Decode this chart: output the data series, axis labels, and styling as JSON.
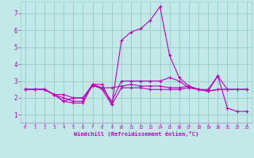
{
  "xlabel": "Windchill (Refroidissement éolien,°C)",
  "xlim": [
    -0.5,
    23.5
  ],
  "ylim": [
    0.5,
    7.7
  ],
  "yticks": [
    1,
    2,
    3,
    4,
    5,
    6,
    7
  ],
  "xticks": [
    0,
    1,
    2,
    3,
    4,
    5,
    6,
    7,
    8,
    9,
    10,
    11,
    12,
    13,
    14,
    15,
    16,
    17,
    18,
    19,
    20,
    21,
    22,
    23
  ],
  "bg_color": "#c2e8e8",
  "grid_color": "#9ccece",
  "line_color": "#bb00bb",
  "lines": [
    [
      2.5,
      2.5,
      2.5,
      2.2,
      1.8,
      1.7,
      1.7,
      2.8,
      2.8,
      1.6,
      5.4,
      5.9,
      6.1,
      6.6,
      7.4,
      4.5,
      3.2,
      2.7,
      2.5,
      2.5,
      3.3,
      1.4,
      1.2,
      1.2
    ],
    [
      2.5,
      2.5,
      2.5,
      2.2,
      2.2,
      2.0,
      2.0,
      2.8,
      2.6,
      1.8,
      3.0,
      3.0,
      3.0,
      3.0,
      3.0,
      3.2,
      3.0,
      2.6,
      2.5,
      2.4,
      3.3,
      2.5,
      2.5,
      2.5
    ],
    [
      2.5,
      2.5,
      2.5,
      2.2,
      1.8,
      2.0,
      2.0,
      2.7,
      2.6,
      2.6,
      2.7,
      2.8,
      2.7,
      2.7,
      2.7,
      2.6,
      2.6,
      2.7,
      2.5,
      2.4,
      2.5,
      2.5,
      2.5,
      2.5
    ],
    [
      2.5,
      2.5,
      2.5,
      2.2,
      2.0,
      1.8,
      1.8,
      2.8,
      2.5,
      1.6,
      2.6,
      2.6,
      2.6,
      2.5,
      2.5,
      2.5,
      2.5,
      2.6,
      2.5,
      2.4,
      2.5,
      2.5,
      2.5,
      2.5
    ]
  ]
}
